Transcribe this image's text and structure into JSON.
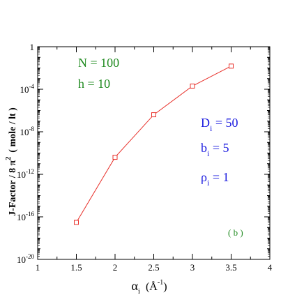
{
  "chart_data": {
    "type": "line",
    "title": "",
    "xlabel": "αi (Å-1)",
    "xlabel_parts": {
      "symbol": "α",
      "symbol_sub": "i",
      "unit_open": "(",
      "unit": "Å",
      "unit_sup": "-1",
      "unit_close": ")"
    },
    "ylabel": "J-Factor / 8 π 2 ( mole / lt )",
    "ylabel_parts": {
      "main": "J-Factor / 8 π",
      "sup": "2",
      "tail": "( mole / lt )"
    },
    "xlim": [
      1,
      4
    ],
    "ylim_log10": [
      -20,
      0
    ],
    "y_scale": "log",
    "grid": false,
    "x_ticks": [
      1,
      1.5,
      2,
      2.5,
      3,
      3.5,
      4
    ],
    "x_tick_labels": [
      "1",
      "1.5",
      "2",
      "2.5",
      "3",
      "3.5",
      "4"
    ],
    "y_tick_exponents": [
      -20,
      -16,
      -12,
      -8,
      -4,
      0
    ],
    "y_tick_labels": [
      {
        "base": "10",
        "exp": "-20"
      },
      {
        "base": "10",
        "exp": "-16"
      },
      {
        "base": "10",
        "exp": "-12"
      },
      {
        "base": "10",
        "exp": "-8"
      },
      {
        "base": "10",
        "exp": "-4"
      },
      {
        "base": "",
        "exp": "",
        "text": "1"
      }
    ],
    "series": [
      {
        "color": "#e8302a",
        "marker": "square",
        "x": [
          1.5,
          2.0,
          2.5,
          3.0,
          3.5
        ],
        "y": [
          3e-17,
          4e-11,
          4e-07,
          0.0002,
          0.015
        ]
      }
    ],
    "annotations_left": [
      {
        "text": "N = 100",
        "color": "#1f8a1f"
      },
      {
        "text": "h = 10",
        "color": "#1f8a1f"
      }
    ],
    "annotations_right": [
      {
        "main": "D",
        "sub": "i",
        "tail": " = 50",
        "color": "#1a1adf"
      },
      {
        "main": "b",
        "sub": "i",
        "tail": " = 5",
        "color": "#1a1adf"
      },
      {
        "main": "ρ",
        "sub": "i",
        "tail": " = 1",
        "color": "#1a1adf"
      }
    ],
    "panel_label": {
      "text": "( b )",
      "color": "#1f8a1f"
    }
  }
}
